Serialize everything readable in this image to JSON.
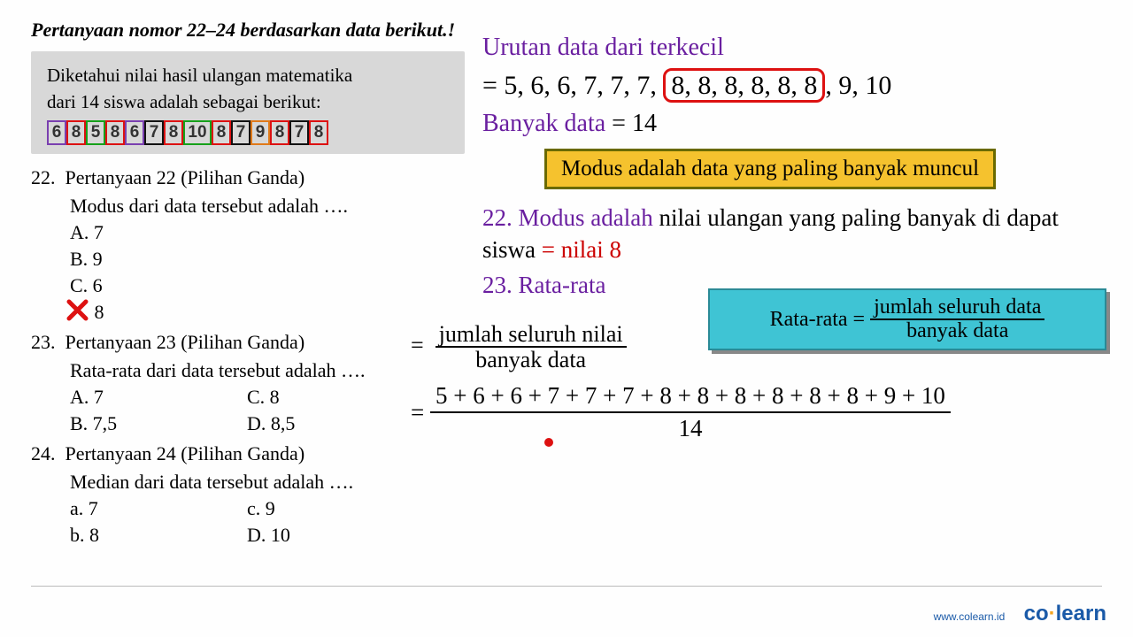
{
  "title": "Pertanyaan nomor 22–24 berdasarkan data berikut.!",
  "known": {
    "line1": "Diketahui nilai hasil ulangan matematika",
    "line2": "dari 14 siswa adalah sebagai berikut:",
    "values": [
      "6",
      "8",
      "5",
      "8",
      "6",
      "7",
      "8",
      "10",
      "8",
      "7",
      "9",
      "8",
      "7",
      "8"
    ],
    "chip_colors": [
      "#7a3fb0",
      "#d11",
      "#16a01a",
      "#d11",
      "#7a3fb0",
      "#111",
      "#d11",
      "#16a01a",
      "#d11",
      "#111",
      "#e07a1a",
      "#d11",
      "#111",
      "#d11"
    ]
  },
  "q22": {
    "num": "22.",
    "title": "Pertanyaan 22 (Pilihan Ganda)",
    "stem": "Modus dari data tersebut adalah ….",
    "opts": [
      "A.   7",
      "B.   9",
      "C.   6",
      "      8"
    ],
    "answer_letter": "D"
  },
  "q23": {
    "num": "23.",
    "title": "Pertanyaan 23 (Pilihan Ganda)",
    "stem": "Rata-rata dari data tersebut adalah ….",
    "opts": [
      [
        "A.   7",
        "C.   8"
      ],
      [
        "B.   7,5",
        "D.   8,5"
      ]
    ]
  },
  "q24": {
    "num": "24.",
    "title": "Pertanyaan 24 (Pilihan Ganda)",
    "stem": "Median dari data tersebut adalah ….",
    "opts": [
      [
        "a.   7",
        "c.   9"
      ],
      [
        "b.   8",
        "D.  10"
      ]
    ]
  },
  "right": {
    "heading": "Urutan data dari terkecil",
    "sorted_pre": "= 5, 6, 6, 7, 7, 7,",
    "sorted_box": "8, 8, 8, 8, 8, 8",
    "sorted_post": ", 9, 10",
    "count_label": "Banyak data",
    "count_eq": "= 14",
    "modus_def": "Modus adalah data yang paling banyak muncul",
    "a22_pre": "22. Modus adalah",
    "a22_body": " nilai ulangan yang paling banyak di dapat siswa ",
    "a22_eq": "= nilai 8",
    "a23_title": "23. Rata-rata",
    "rata_label": "Rata-rata =",
    "rata_num": "jumlah seluruh data",
    "rata_den": "banyak data",
    "form_num": "jumlah seluruh nilai",
    "form_den": "banyak data",
    "sum_expr": "5 + 6 + 6 + 7 + 7 + 7 + 8 + 8 + 8 + 8 + 8 + 8 + 9 + 10",
    "sum_den": "14"
  },
  "footer": {
    "url": "www.colearn.id",
    "brand_a": "co",
    "brand_dot": "·",
    "brand_b": "learn"
  }
}
